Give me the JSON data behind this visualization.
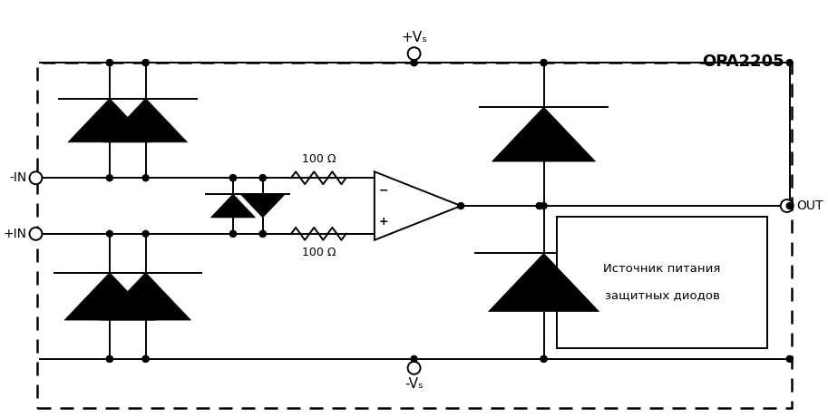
{
  "title": "OPA2205",
  "bg_color": "#ffffff",
  "label_nin": "-IN",
  "label_pin": "+IN",
  "label_out": "OUT",
  "label_pvs": "+Vₛ",
  "label_nvs": "-Vₛ",
  "label_r1": "100 Ω",
  "label_r2": "100 Ω",
  "box_label_line1": "Источник питания",
  "box_label_line2": "защитных диодов"
}
